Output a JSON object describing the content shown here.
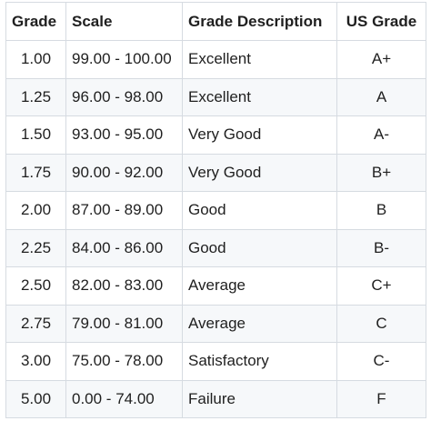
{
  "table": {
    "headers": [
      "Grade",
      "Scale",
      "Grade Description",
      "US Grade"
    ],
    "rows": [
      {
        "grade": "1.00",
        "scale": "99.00 - 100.00",
        "description": "Excellent",
        "us_grade": "A+"
      },
      {
        "grade": "1.25",
        "scale": "96.00 - 98.00",
        "description": "Excellent",
        "us_grade": "A"
      },
      {
        "grade": "1.50",
        "scale": "93.00 - 95.00",
        "description": "Very Good",
        "us_grade": "A-"
      },
      {
        "grade": "1.75",
        "scale": "90.00 - 92.00",
        "description": "Very Good",
        "us_grade": "B+"
      },
      {
        "grade": "2.00",
        "scale": "87.00 - 89.00",
        "description": "Good",
        "us_grade": "B"
      },
      {
        "grade": "2.25",
        "scale": "84.00 - 86.00",
        "description": "Good",
        "us_grade": "B-"
      },
      {
        "grade": "2.50",
        "scale": "82.00 - 83.00",
        "description": "Average",
        "us_grade": "C+"
      },
      {
        "grade": "2.75",
        "scale": "79.00 - 81.00",
        "description": "Average",
        "us_grade": "C"
      },
      {
        "grade": "3.00",
        "scale": "75.00 - 78.00",
        "description": "Satisfactory",
        "us_grade": "C-"
      },
      {
        "grade": "5.00",
        "scale": "0.00 - 74.00",
        "description": "Failure",
        "us_grade": "F"
      }
    ]
  },
  "colors": {
    "border": "#d6dbe1",
    "stripe": "#f6f8fa",
    "text": "#1f1f1f",
    "background": "#ffffff"
  }
}
